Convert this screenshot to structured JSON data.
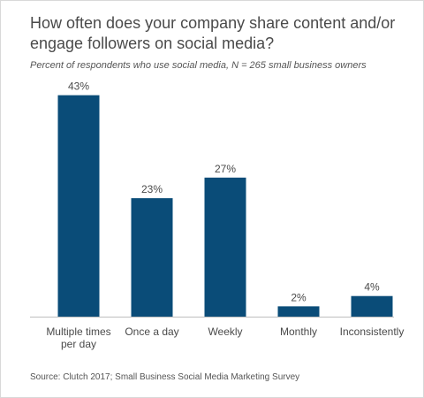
{
  "title": "How often does your company share content and/or engage followers on social media?",
  "subtitle": "Percent of respondents who use social media, N = 265 small business owners",
  "source": "Source: Clutch 2017; Small Business Social Media Marketing Survey",
  "colors": {
    "bar": "#0a4c78",
    "label": "#4a4a4a",
    "axis": "#bfbfbf"
  },
  "chart_data": {
    "type": "bar",
    "categories": [
      [
        "Multiple times",
        "per day"
      ],
      [
        "Once a day"
      ],
      [
        "Weekly"
      ],
      [
        "Monthly"
      ],
      [
        "Inconsistently"
      ]
    ],
    "values": [
      43,
      23,
      27,
      2,
      4
    ],
    "data_labels": [
      "43%",
      "23%",
      "27%",
      "2%",
      "4%"
    ],
    "ylim": [
      0,
      45
    ],
    "xlabel": "",
    "ylabel": "",
    "grid": false,
    "legend": "none"
  }
}
